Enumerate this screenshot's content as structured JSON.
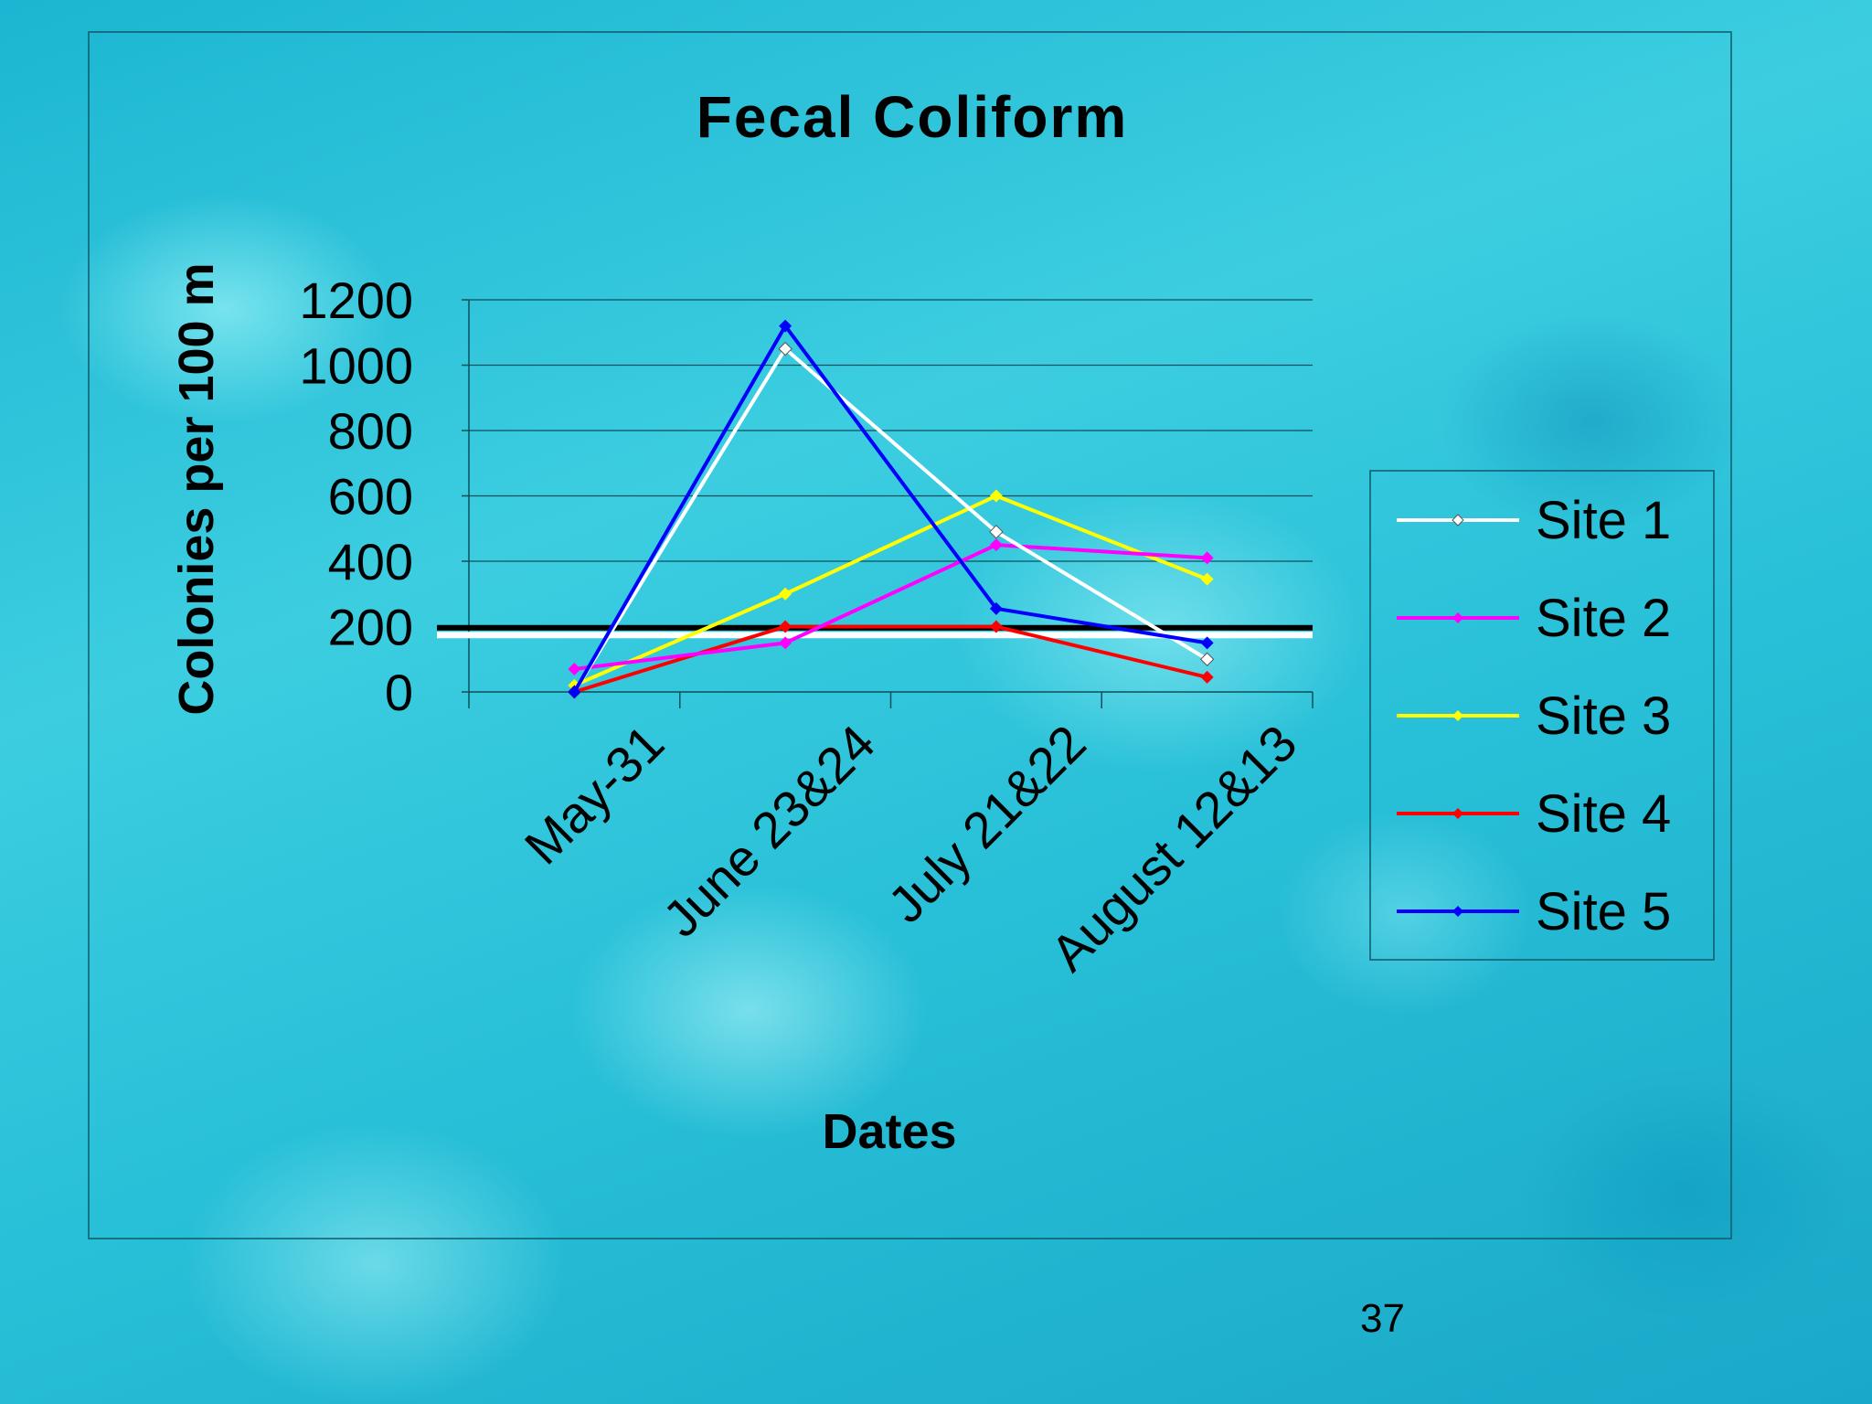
{
  "slide_number": "37",
  "chart_data": {
    "type": "line",
    "title": "Fecal Coliform",
    "xlabel": "Dates",
    "ylabel": "Colonies per 100 m",
    "categories": [
      "May-31",
      "June 23&24",
      "July 21&22",
      "August 12&13"
    ],
    "ylim": [
      0,
      1200
    ],
    "yticks": [
      0,
      200,
      400,
      600,
      800,
      1000,
      1200
    ],
    "grid": true,
    "legend_position": "right",
    "reference_line": {
      "value": 188,
      "colors": [
        "#000000",
        "#ffffff"
      ]
    },
    "series": [
      {
        "name": "Site 1",
        "color": "#ffffff",
        "values": [
          0,
          1050,
          490,
          100
        ]
      },
      {
        "name": "Site 2",
        "color": "#ff00ff",
        "values": [
          70,
          150,
          450,
          410
        ]
      },
      {
        "name": "Site 3",
        "color": "#ffff00",
        "values": [
          20,
          300,
          600,
          345
        ]
      },
      {
        "name": "Site 4",
        "color": "#ff0000",
        "values": [
          0,
          200,
          200,
          45
        ]
      },
      {
        "name": "Site 5",
        "color": "#0000ff",
        "values": [
          0,
          1120,
          255,
          150
        ]
      }
    ]
  }
}
